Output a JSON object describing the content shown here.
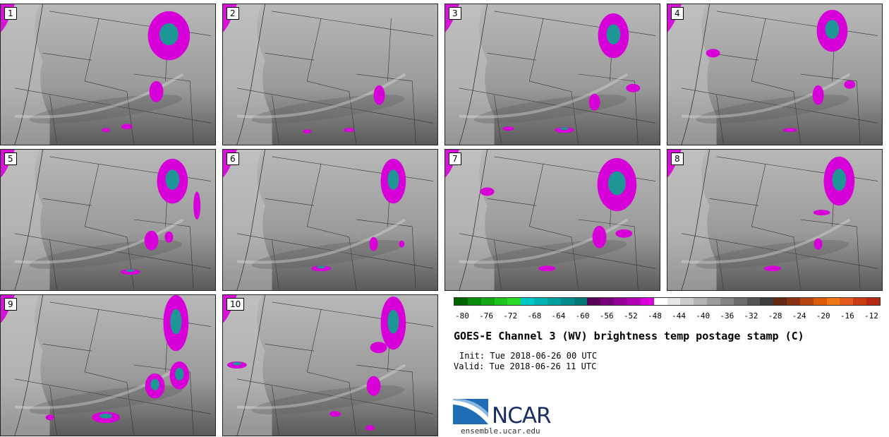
{
  "panels": [
    "1",
    "2",
    "3",
    "4",
    "5",
    "6",
    "7",
    "8",
    "9",
    "10"
  ],
  "colorbar": {
    "colors": [
      "#006400",
      "#0a8c0a",
      "#14a814",
      "#1ec41e",
      "#28dc28",
      "#00c8c8",
      "#00b4b4",
      "#00a0a0",
      "#008c8c",
      "#007878",
      "#5a005a",
      "#780078",
      "#960096",
      "#b400b4",
      "#dc00dc",
      "#ffffff",
      "#e6e6e6",
      "#cccccc",
      "#b4b4b4",
      "#9c9c9c",
      "#848484",
      "#6c6c6c",
      "#545454",
      "#3c3c3c",
      "#642814",
      "#8c3214",
      "#b44614",
      "#dc5a0a",
      "#f07814",
      "#e65a1e",
      "#cc3c14",
      "#b42814"
    ],
    "ticks": [
      "-80",
      "-76",
      "-72",
      "-68",
      "-64",
      "-60",
      "-56",
      "-52",
      "-48",
      "-44",
      "-40",
      "-36",
      "-32",
      "-28",
      "-24",
      "-20",
      "-16",
      "-12"
    ]
  },
  "title": "GOES-E Channel 3 (WV) brightness temp postage stamp (C)",
  "init": "Init: Tue 2018-06-26 00 UTC",
  "valid": "Valid: Tue 2018-06-26 11 UTC",
  "logo": "NCAR",
  "site": "ensemble.ucar.edu",
  "colors": {
    "magenta": "#d800d8",
    "teal": "#1e9696",
    "background": "#9a9a9a"
  }
}
